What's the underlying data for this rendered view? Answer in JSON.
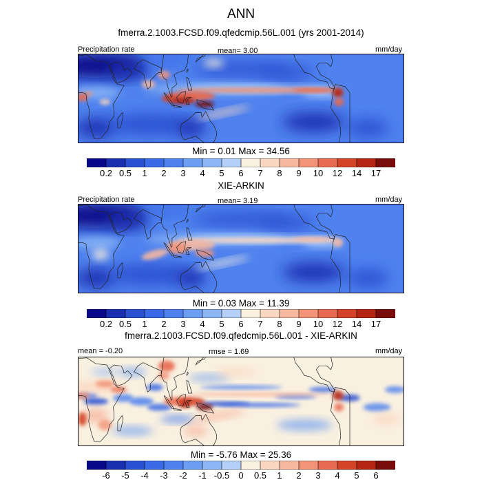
{
  "title": "ANN",
  "panels": [
    {
      "id": "model",
      "title": "fmerra.2.1003.FCSD.f09.qfedcmip.56L.001 (yrs 2001-2014)",
      "left_label": "Precipitation rate",
      "center_label": "mean=   3.00",
      "right_label": "mm/day",
      "minmax": "Min =   0.01 Max =  34.56"
    },
    {
      "id": "obs",
      "title": "XIE-ARKIN",
      "left_label": "Precipitation rate",
      "center_label": "mean=   3.19",
      "right_label": "mm/day",
      "minmax": "Min =   0.03 Max =  11.39"
    },
    {
      "id": "diff",
      "title": "fmerra.2.1003.FCSD.f09.qfedcmip.56L.001 - XIE-ARKIN",
      "left_label": "mean =  -0.20",
      "center_label": "rmse =   1.69",
      "right_label": "mm/day",
      "minmax": "Min =  -5.76 Max =  25.36"
    }
  ],
  "chart_data": [
    {
      "type": "heatmap",
      "title": "fmerra.2.1003.FCSD.f09.qfedcmip.56L.001 (yrs 2001-2014)",
      "variable": "Precipitation rate",
      "units": "mm/day",
      "mean": 3.0,
      "min": 0.01,
      "max": 34.56,
      "colorbar_levels": [
        "0.2",
        "0.5",
        "1",
        "2",
        "3",
        "4",
        "5",
        "6",
        "7",
        "8",
        "9",
        "10",
        "12",
        "14",
        "17"
      ],
      "colorbar_colors": [
        "#08088a",
        "#1a2fb0",
        "#2a50d2",
        "#3a6ae6",
        "#4f82ee",
        "#6c9ef2",
        "#8cb6f4",
        "#b4d0f8",
        "#f9f0e0",
        "#fad7c0",
        "#f7b8a0",
        "#f29478",
        "#e86a50",
        "#d44328",
        "#b42512",
        "#7a0c0c"
      ]
    },
    {
      "type": "heatmap",
      "title": "XIE-ARKIN",
      "variable": "Precipitation rate",
      "units": "mm/day",
      "mean": 3.19,
      "min": 0.03,
      "max": 11.39,
      "colorbar_levels": [
        "0.2",
        "0.5",
        "1",
        "2",
        "3",
        "4",
        "5",
        "6",
        "7",
        "8",
        "9",
        "10",
        "12",
        "14",
        "17"
      ],
      "colorbar_colors": [
        "#08088a",
        "#1a2fb0",
        "#2a50d2",
        "#3a6ae6",
        "#4f82ee",
        "#6c9ef2",
        "#8cb6f4",
        "#b4d0f8",
        "#f9f0e0",
        "#fad7c0",
        "#f7b8a0",
        "#f29478",
        "#e86a50",
        "#d44328",
        "#b42512",
        "#7a0c0c"
      ]
    },
    {
      "type": "heatmap",
      "title": "fmerra.2.1003.FCSD.f09.qfedcmip.56L.001 - XIE-ARKIN",
      "units": "mm/day",
      "mean": -0.2,
      "rmse": 1.69,
      "min": -5.76,
      "max": 25.36,
      "colorbar_levels": [
        "-6",
        "-5",
        "-4",
        "-3",
        "-2",
        "-1",
        "-0.5",
        "0",
        "0.5",
        "1",
        "2",
        "3",
        "4",
        "5",
        "6"
      ],
      "colorbar_colors": [
        "#08088a",
        "#1a2fb0",
        "#2a50d2",
        "#3a6ae6",
        "#4f82ee",
        "#6c9ef2",
        "#8cb6f4",
        "#b4d0f8",
        "#f9f0e0",
        "#fad7c0",
        "#f7b8a0",
        "#f29478",
        "#e86a50",
        "#d44328",
        "#b42512",
        "#7a0c0c"
      ]
    }
  ]
}
